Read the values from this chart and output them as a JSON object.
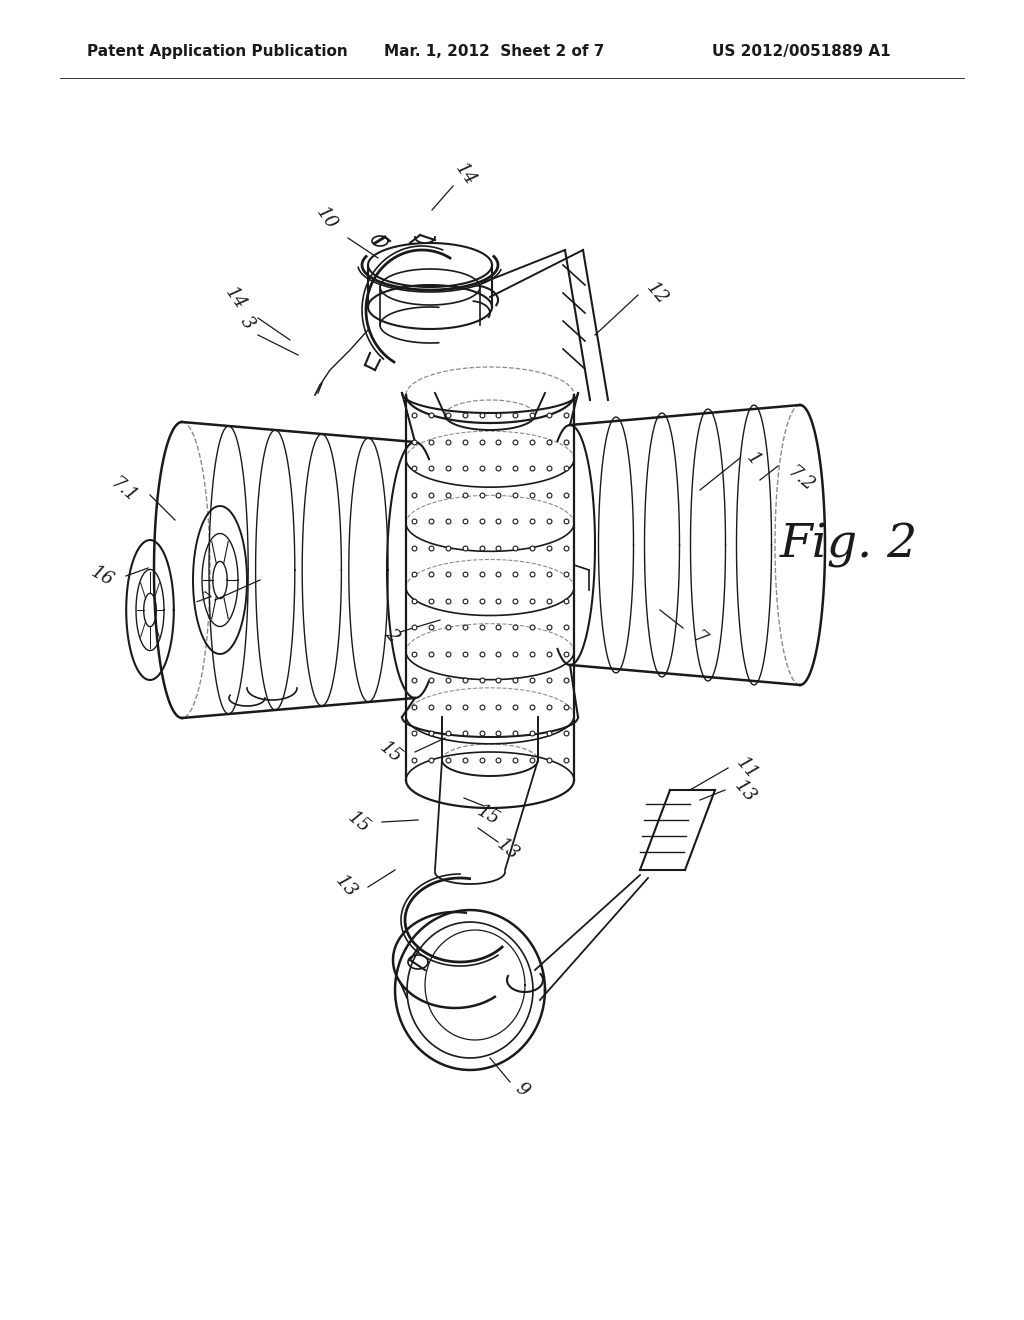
{
  "bg_color": "#ffffff",
  "header_left": "Patent Application Publication",
  "header_center": "Mar. 1, 2012  Sheet 2 of 7",
  "header_right": "US 2012/0051889 A1",
  "fig_label": "Fig. 2",
  "header_fontsize": 11,
  "fig_label_fontsize": 34,
  "line_color": "#1a1a1a",
  "label_color": "#1a1a1a",
  "label_fontsize": 13
}
